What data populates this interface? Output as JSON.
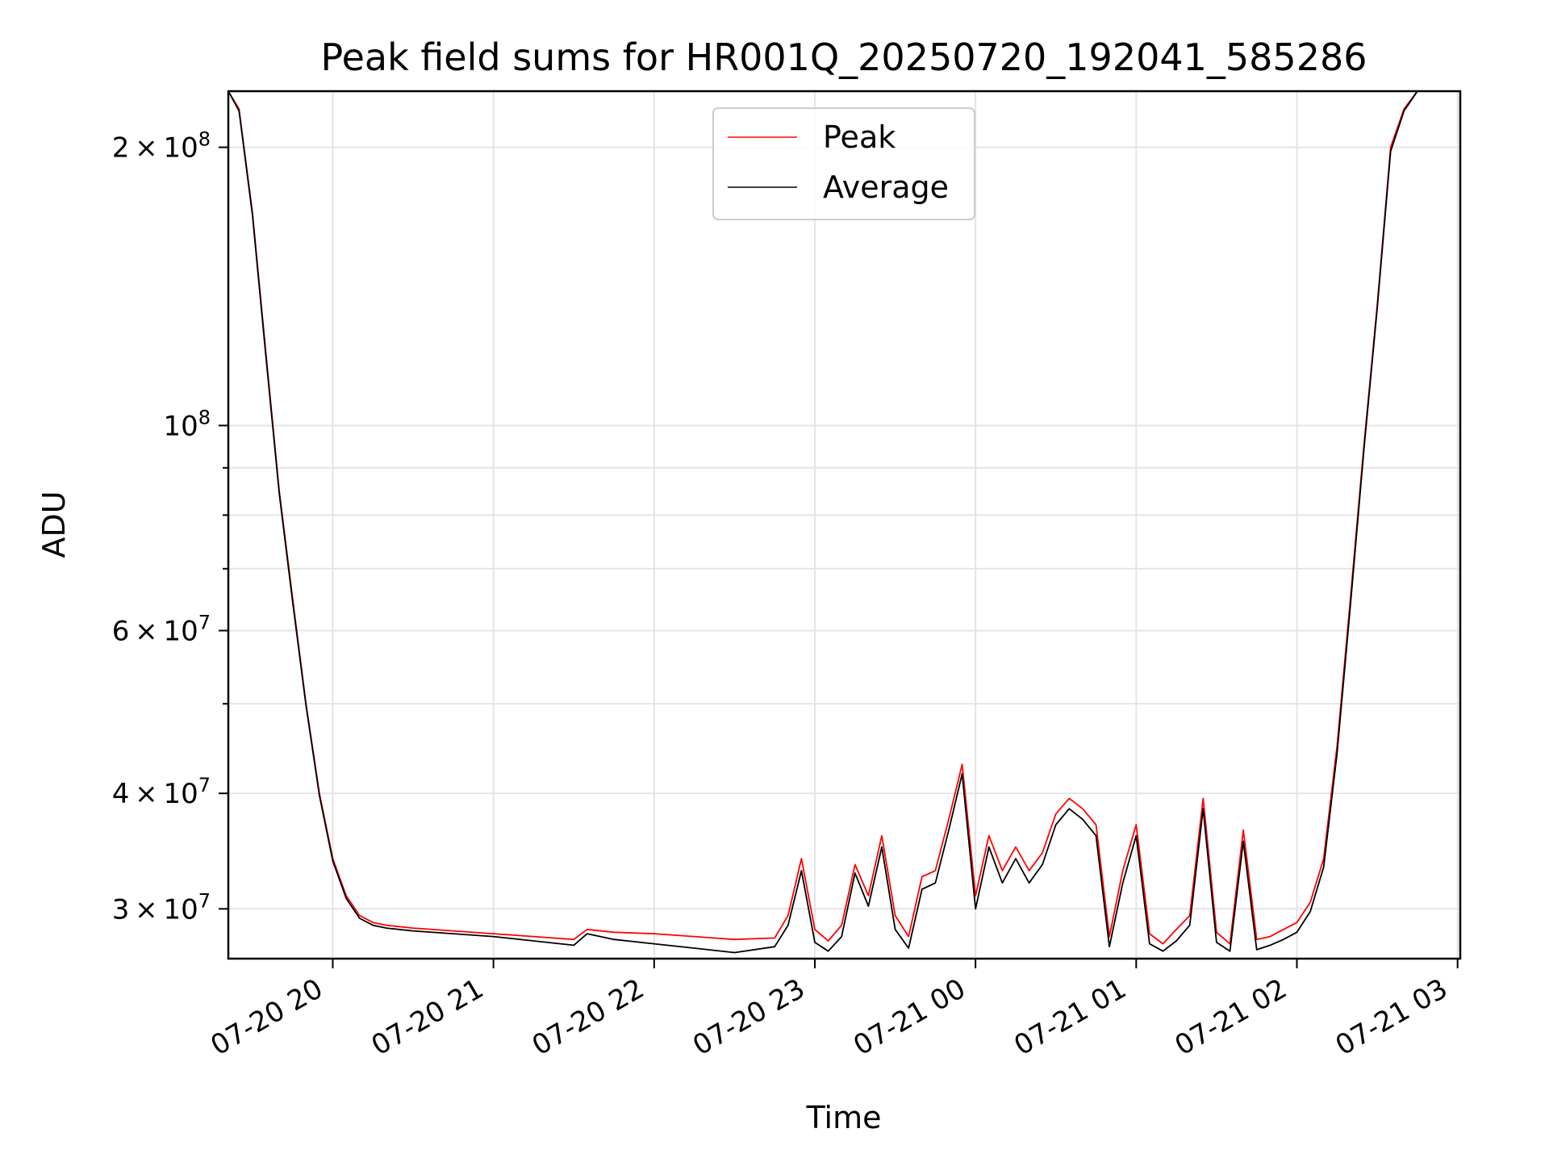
{
  "chart_data": {
    "type": "line",
    "title": "Peak field sums for HR001Q_20250720_192041_585286",
    "xlabel": "Time",
    "ylabel": "ADU",
    "y_scale": "log",
    "x_range": [
      "07-20 19:21",
      "07-21 03:01"
    ],
    "ylim": [
      26500000,
      230000000
    ],
    "grid": true,
    "legend_position": "top-center",
    "x_tick_labels": [
      "07-20 20",
      "07-20 21",
      "07-20 22",
      "07-20 23",
      "07-21 00",
      "07-21 01",
      "07-21 02",
      "07-21 03"
    ],
    "y_major_ticks": [
      {
        "value": 30000000,
        "label": "3 × 10^7"
      },
      {
        "value": 40000000,
        "label": "4 × 10^7"
      },
      {
        "value": 60000000,
        "label": "6 × 10^7"
      },
      {
        "value": 100000000,
        "label": "10^8"
      },
      {
        "value": 200000000,
        "label": "2 × 10^8"
      }
    ],
    "series": [
      {
        "name": "Peak",
        "color": "#ff0000",
        "x": [
          "07-20 19:21",
          "07-20 19:25",
          "07-20 19:30",
          "07-20 19:35",
          "07-20 19:40",
          "07-20 19:45",
          "07-20 19:50",
          "07-20 19:55",
          "07-20 20:00",
          "07-20 20:05",
          "07-20 20:10",
          "07-20 20:15",
          "07-20 20:20",
          "07-20 20:30",
          "07-20 20:45",
          "07-20 21:00",
          "07-20 21:15",
          "07-20 21:30",
          "07-20 21:35",
          "07-20 21:45",
          "07-20 22:00",
          "07-20 22:15",
          "07-20 22:30",
          "07-20 22:45",
          "07-20 22:50",
          "07-20 22:55",
          "07-20 23:00",
          "07-20 23:05",
          "07-20 23:10",
          "07-20 23:15",
          "07-20 23:20",
          "07-20 23:25",
          "07-20 23:30",
          "07-20 23:35",
          "07-20 23:40",
          "07-20 23:45",
          "07-20 23:50",
          "07-20 23:55",
          "07-21 00:00",
          "07-21 00:05",
          "07-21 00:10",
          "07-21 00:15",
          "07-21 00:20",
          "07-21 00:25",
          "07-21 00:30",
          "07-21 00:35",
          "07-21 00:40",
          "07-21 00:45",
          "07-21 00:50",
          "07-21 00:55",
          "07-21 01:00",
          "07-21 01:05",
          "07-21 01:10",
          "07-21 01:15",
          "07-21 01:20",
          "07-21 01:25",
          "07-21 01:30",
          "07-21 01:35",
          "07-21 01:40",
          "07-21 01:45",
          "07-21 01:50",
          "07-21 01:55",
          "07-21 02:00",
          "07-21 02:05",
          "07-21 02:10",
          "07-21 02:15",
          "07-21 02:20",
          "07-21 02:25",
          "07-21 02:30",
          "07-21 02:35",
          "07-21 02:40",
          "07-21 02:45",
          "07-21 02:50"
        ],
        "y": [
          230000000,
          220000000,
          170000000,
          120000000,
          85000000,
          65000000,
          50000000,
          40000000,
          34000000,
          31000000,
          29500000,
          29000000,
          28800000,
          28600000,
          28400000,
          28200000,
          28000000,
          27800000,
          28500000,
          28300000,
          28200000,
          28000000,
          27800000,
          27900000,
          29500000,
          34000000,
          28500000,
          27700000,
          28800000,
          33500000,
          31000000,
          36000000,
          29500000,
          28000000,
          32500000,
          33000000,
          37500000,
          43000000,
          31000000,
          36000000,
          33000000,
          35000000,
          33000000,
          34500000,
          38000000,
          39500000,
          38500000,
          37000000,
          28000000,
          33000000,
          37000000,
          28200000,
          27500000,
          28500000,
          29500000,
          39500000,
          28300000,
          27500000,
          36500000,
          27800000,
          28000000,
          28500000,
          29000000,
          30500000,
          34000000,
          45000000,
          65000000,
          95000000,
          135000000,
          200000000,
          220000000,
          230000000,
          230000000
        ]
      },
      {
        "name": "Average",
        "color": "#000000",
        "x": [
          "07-20 19:21",
          "07-20 19:25",
          "07-20 19:30",
          "07-20 19:35",
          "07-20 19:40",
          "07-20 19:45",
          "07-20 19:50",
          "07-20 19:55",
          "07-20 20:00",
          "07-20 20:05",
          "07-20 20:10",
          "07-20 20:15",
          "07-20 20:20",
          "07-20 20:30",
          "07-20 20:45",
          "07-20 21:00",
          "07-20 21:15",
          "07-20 21:30",
          "07-20 21:35",
          "07-20 21:45",
          "07-20 22:00",
          "07-20 22:15",
          "07-20 22:30",
          "07-20 22:45",
          "07-20 22:50",
          "07-20 22:55",
          "07-20 23:00",
          "07-20 23:05",
          "07-20 23:10",
          "07-20 23:15",
          "07-20 23:20",
          "07-20 23:25",
          "07-20 23:30",
          "07-20 23:35",
          "07-20 23:40",
          "07-20 23:45",
          "07-20 23:50",
          "07-20 23:55",
          "07-21 00:00",
          "07-21 00:05",
          "07-21 00:10",
          "07-21 00:15",
          "07-21 00:20",
          "07-21 00:25",
          "07-21 00:30",
          "07-21 00:35",
          "07-21 00:40",
          "07-21 00:45",
          "07-21 00:50",
          "07-21 00:55",
          "07-21 01:00",
          "07-21 01:05",
          "07-21 01:10",
          "07-21 01:15",
          "07-21 01:20",
          "07-21 01:25",
          "07-21 01:30",
          "07-21 01:35",
          "07-21 01:40",
          "07-21 01:45",
          "07-21 01:50",
          "07-21 01:55",
          "07-21 02:00",
          "07-21 02:05",
          "07-21 02:10",
          "07-21 02:15",
          "07-21 02:20",
          "07-21 02:25",
          "07-21 02:30",
          "07-21 02:35",
          "07-21 02:40",
          "07-21 02:45",
          "07-21 02:50"
        ],
        "y": [
          230000000,
          219000000,
          169000000,
          119000000,
          84500000,
          64500000,
          49800000,
          39800000,
          33800000,
          30800000,
          29300000,
          28800000,
          28600000,
          28400000,
          28200000,
          28000000,
          27700000,
          27400000,
          28200000,
          27800000,
          27500000,
          27200000,
          26900000,
          27300000,
          28800000,
          33000000,
          27600000,
          27000000,
          28000000,
          32800000,
          30200000,
          35000000,
          28500000,
          27200000,
          31500000,
          32000000,
          36500000,
          42000000,
          30000000,
          35000000,
          32000000,
          34000000,
          32000000,
          33500000,
          37000000,
          38500000,
          37500000,
          36000000,
          27300000,
          32000000,
          36000000,
          27500000,
          27000000,
          27700000,
          28800000,
          38500000,
          27600000,
          27000000,
          35500000,
          27100000,
          27400000,
          27800000,
          28300000,
          29800000,
          33300000,
          44200000,
          64000000,
          94000000,
          134000000,
          198000000,
          219000000,
          230000000,
          230000000
        ]
      }
    ]
  }
}
